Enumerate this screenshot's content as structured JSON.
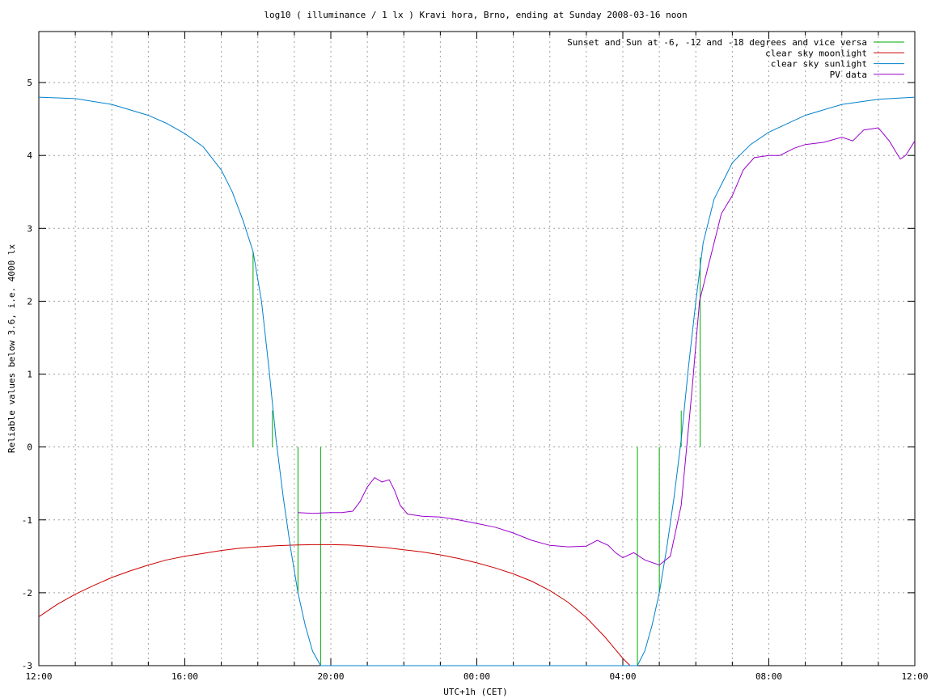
{
  "chart_data": {
    "type": "line",
    "title": "log10 ( illuminance / 1 lx ) Kravi hora, Brno, ending at Sunday 2008-03-16 noon",
    "xlabel": "UTC+1h (CET)",
    "ylabel": "Reliable values below 3.6, i.e. 4000 lx",
    "xlim": [
      0,
      24
    ],
    "ylim": [
      -3,
      5.7
    ],
    "grid": true,
    "legend_position": "top-right",
    "x_ticks": [
      {
        "value": 0,
        "label": "12:00"
      },
      {
        "value": 4,
        "label": "16:00"
      },
      {
        "value": 8,
        "label": "20:00"
      },
      {
        "value": 12,
        "label": "00:00"
      },
      {
        "value": 16,
        "label": "04:00"
      },
      {
        "value": 20,
        "label": "08:00"
      },
      {
        "value": 24,
        "label": "12:00"
      }
    ],
    "x_minor_step": 1,
    "y_ticks": [
      {
        "value": -3,
        "label": "-3"
      },
      {
        "value": -2,
        "label": "-2"
      },
      {
        "value": -1,
        "label": "-1"
      },
      {
        "value": 0,
        "label": "0"
      },
      {
        "value": 1,
        "label": "1"
      },
      {
        "value": 2,
        "label": "2"
      },
      {
        "value": 3,
        "label": "3"
      },
      {
        "value": 4,
        "label": "4"
      },
      {
        "value": 5,
        "label": "5"
      }
    ],
    "series": [
      {
        "name": "Sunset and Sun at -6, -12 and -18 degrees and vice versa",
        "color": "#00aa00",
        "kind": "impulses",
        "points": [
          {
            "x": 5.87,
            "y": 2.68
          },
          {
            "x": 6.4,
            "y": 0.5
          },
          {
            "x": 7.1,
            "y": -2.0
          },
          {
            "x": 7.72,
            "y": -3.0
          },
          {
            "x": 16.4,
            "y": -3.0
          },
          {
            "x": 17.0,
            "y": -2.0
          },
          {
            "x": 17.6,
            "y": 0.5
          },
          {
            "x": 18.12,
            "y": 2.6
          }
        ]
      },
      {
        "name": "clear sky moonlight",
        "color": "#cc0000",
        "kind": "line",
        "points": [
          [
            0,
            -2.33
          ],
          [
            0.5,
            -2.16
          ],
          [
            1,
            -2.02
          ],
          [
            1.5,
            -1.9
          ],
          [
            2,
            -1.79
          ],
          [
            2.5,
            -1.7
          ],
          [
            3,
            -1.62
          ],
          [
            3.5,
            -1.55
          ],
          [
            4,
            -1.5
          ],
          [
            4.5,
            -1.46
          ],
          [
            5,
            -1.42
          ],
          [
            5.5,
            -1.39
          ],
          [
            6,
            -1.37
          ],
          [
            6.5,
            -1.355
          ],
          [
            7,
            -1.345
          ],
          [
            7.5,
            -1.34
          ],
          [
            8,
            -1.34
          ],
          [
            8.5,
            -1.345
          ],
          [
            9,
            -1.36
          ],
          [
            9.5,
            -1.38
          ],
          [
            10,
            -1.41
          ],
          [
            10.5,
            -1.44
          ],
          [
            11,
            -1.48
          ],
          [
            11.5,
            -1.53
          ],
          [
            12,
            -1.59
          ],
          [
            12.5,
            -1.66
          ],
          [
            13,
            -1.74
          ],
          [
            13.5,
            -1.84
          ],
          [
            14,
            -1.97
          ],
          [
            14.5,
            -2.13
          ],
          [
            15,
            -2.34
          ],
          [
            15.5,
            -2.6
          ],
          [
            16,
            -2.9
          ],
          [
            16.2,
            -3.0
          ]
        ]
      },
      {
        "name": "clear sky sunlight",
        "color": "#0080cc",
        "kind": "line",
        "points": [
          [
            0,
            4.8
          ],
          [
            1,
            4.78
          ],
          [
            2,
            4.7
          ],
          [
            3,
            4.55
          ],
          [
            3.5,
            4.44
          ],
          [
            4,
            4.3
          ],
          [
            4.5,
            4.12
          ],
          [
            5,
            3.8
          ],
          [
            5.3,
            3.5
          ],
          [
            5.6,
            3.1
          ],
          [
            5.87,
            2.68
          ],
          [
            6.1,
            2.0
          ],
          [
            6.3,
            1.1
          ],
          [
            6.5,
            0.1
          ],
          [
            6.7,
            -0.7
          ],
          [
            6.9,
            -1.4
          ],
          [
            7.1,
            -2.0
          ],
          [
            7.3,
            -2.45
          ],
          [
            7.5,
            -2.8
          ],
          [
            7.72,
            -3.0
          ],
          [
            16.4,
            -3.0
          ],
          [
            16.6,
            -2.8
          ],
          [
            16.8,
            -2.45
          ],
          [
            17.0,
            -2.0
          ],
          [
            17.2,
            -1.4
          ],
          [
            17.4,
            -0.7
          ],
          [
            17.6,
            0.1
          ],
          [
            17.8,
            1.1
          ],
          [
            18.0,
            2.0
          ],
          [
            18.2,
            2.8
          ],
          [
            18.5,
            3.4
          ],
          [
            19.0,
            3.9
          ],
          [
            19.5,
            4.15
          ],
          [
            20,
            4.32
          ],
          [
            21,
            4.55
          ],
          [
            22,
            4.7
          ],
          [
            23,
            4.77
          ],
          [
            24,
            4.8
          ]
        ]
      },
      {
        "name": "PV data",
        "color": "#9900cc",
        "kind": "line",
        "points": [
          [
            7.1,
            -0.9
          ],
          [
            7.5,
            -0.91
          ],
          [
            8.0,
            -0.9
          ],
          [
            8.3,
            -0.9
          ],
          [
            8.6,
            -0.88
          ],
          [
            8.8,
            -0.75
          ],
          [
            9.0,
            -0.55
          ],
          [
            9.2,
            -0.42
          ],
          [
            9.4,
            -0.48
          ],
          [
            9.6,
            -0.45
          ],
          [
            9.75,
            -0.6
          ],
          [
            9.9,
            -0.8
          ],
          [
            10.1,
            -0.92
          ],
          [
            10.5,
            -0.95
          ],
          [
            11,
            -0.96
          ],
          [
            11.5,
            -1.0
          ],
          [
            12,
            -1.05
          ],
          [
            12.5,
            -1.1
          ],
          [
            13,
            -1.18
          ],
          [
            13.5,
            -1.28
          ],
          [
            14,
            -1.35
          ],
          [
            14.5,
            -1.37
          ],
          [
            15,
            -1.36
          ],
          [
            15.3,
            -1.28
          ],
          [
            15.6,
            -1.35
          ],
          [
            15.8,
            -1.45
          ],
          [
            16.0,
            -1.52
          ],
          [
            16.3,
            -1.45
          ],
          [
            16.6,
            -1.55
          ],
          [
            17.0,
            -1.62
          ],
          [
            17.3,
            -1.5
          ],
          [
            17.6,
            -0.8
          ],
          [
            17.9,
            0.8
          ],
          [
            18.1,
            2.0
          ],
          [
            18.4,
            2.6
          ],
          [
            18.7,
            3.2
          ],
          [
            19.0,
            3.45
          ],
          [
            19.3,
            3.8
          ],
          [
            19.6,
            3.97
          ],
          [
            20,
            4.0
          ],
          [
            20.3,
            4.0
          ],
          [
            20.7,
            4.1
          ],
          [
            21,
            4.15
          ],
          [
            21.5,
            4.18
          ],
          [
            22,
            4.25
          ],
          [
            22.3,
            4.2
          ],
          [
            22.6,
            4.35
          ],
          [
            23,
            4.38
          ],
          [
            23.3,
            4.2
          ],
          [
            23.6,
            3.95
          ],
          [
            23.75,
            4.0
          ],
          [
            24,
            4.2
          ]
        ]
      }
    ]
  }
}
